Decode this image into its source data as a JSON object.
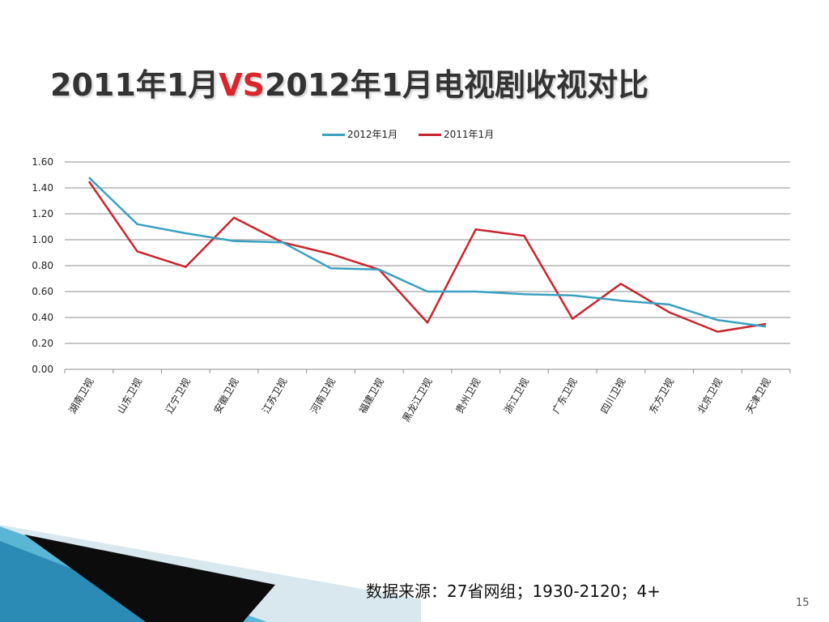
{
  "slide": {
    "title_part1": "2011年1月",
    "title_vs": "VS",
    "title_part2": "2012年1月电视剧收视对比",
    "source": "数据来源：27省网组；1930-2120；4+",
    "page_number": "15"
  },
  "colors": {
    "series_2012": "#3aa0c0",
    "series_2011": "#c9252c",
    "title_vs": "#d9262c"
  },
  "chart_data": {
    "type": "line",
    "categories": [
      "湖南卫视",
      "山东卫视",
      "辽宁卫视",
      "安徽卫视",
      "江苏卫视",
      "河南卫视",
      "福建卫视",
      "黑龙江卫视",
      "贵州卫视",
      "浙江卫视",
      "广东卫视",
      "四川卫视",
      "东方卫视",
      "北京卫视",
      "天津卫视"
    ],
    "series": [
      {
        "name": "2012年1月",
        "color": "#3aa0c0",
        "values": [
          1.48,
          1.12,
          1.05,
          0.99,
          0.98,
          0.78,
          0.77,
          0.6,
          0.6,
          0.58,
          0.57,
          0.53,
          0.5,
          0.38,
          0.33
        ]
      },
      {
        "name": "2011年1月",
        "color": "#c9252c",
        "values": [
          1.45,
          0.91,
          0.79,
          1.17,
          0.98,
          0.89,
          0.77,
          0.36,
          1.08,
          1.03,
          0.39,
          0.66,
          0.44,
          0.29,
          0.35
        ]
      }
    ],
    "ylim": [
      0,
      1.6
    ],
    "yticks": [
      "0.00",
      "0.20",
      "0.40",
      "0.60",
      "0.80",
      "1.00",
      "1.20",
      "1.40",
      "1.60"
    ],
    "grid": true,
    "legend_position": "top"
  }
}
